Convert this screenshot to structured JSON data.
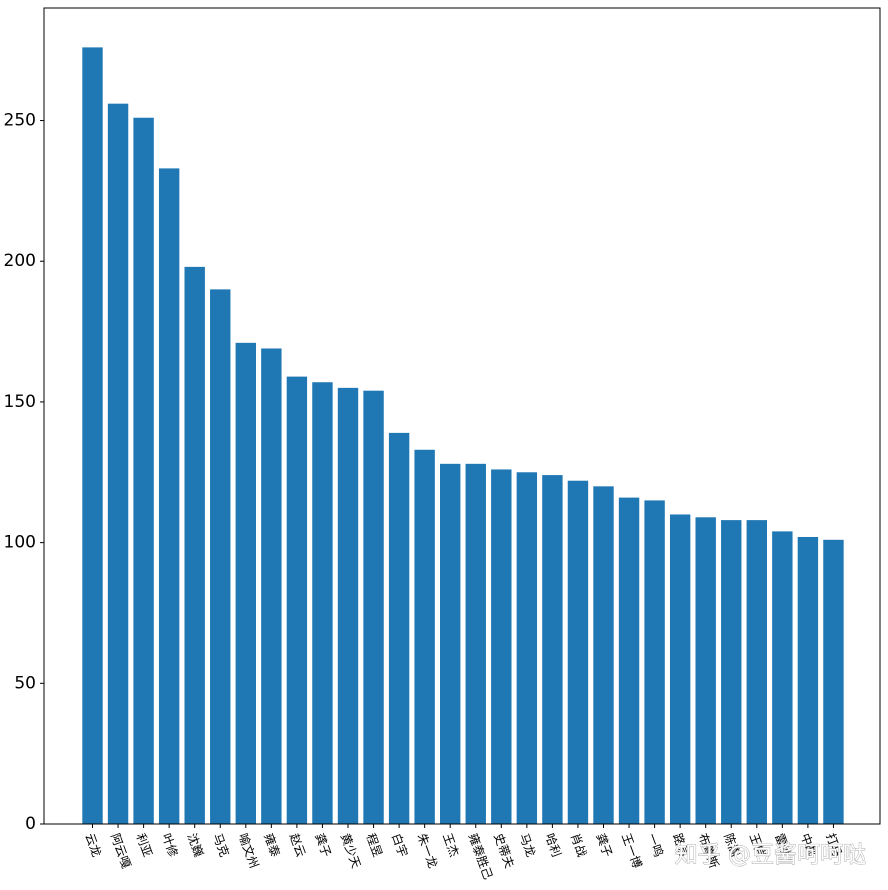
{
  "watermark": "知乎 @豆酱呵呵哒",
  "chart_data": {
    "type": "bar",
    "title": "",
    "xlabel": "",
    "ylabel": "",
    "bar_color": "#1f77b4",
    "ylim": [
      0,
      290
    ],
    "yticks": [
      0,
      50,
      100,
      150,
      200,
      250
    ],
    "grid": false,
    "categories": [
      "云龙",
      "阿云嘎",
      "利亚",
      "叶修",
      "沈巍",
      "马克",
      "喻文州",
      "雍泰",
      "赵云",
      "龚子",
      "黄少天",
      "程昱",
      "白宇",
      "朱一龙",
      "王杰",
      "雍泰胜己",
      "史蒂夫",
      "马龙",
      "哈利",
      "肖战",
      "龚子",
      "王一博",
      "一鸣",
      "路易",
      "布鲁斯",
      "陈嵩",
      "王恺",
      "雷纳",
      "中邮",
      "打马"
    ],
    "values": [
      276,
      256,
      251,
      233,
      198,
      190,
      171,
      169,
      159,
      157,
      155,
      154,
      139,
      133,
      128,
      128,
      126,
      125,
      124,
      122,
      120,
      116,
      115,
      110,
      109,
      108,
      108,
      104,
      102,
      101
    ]
  }
}
